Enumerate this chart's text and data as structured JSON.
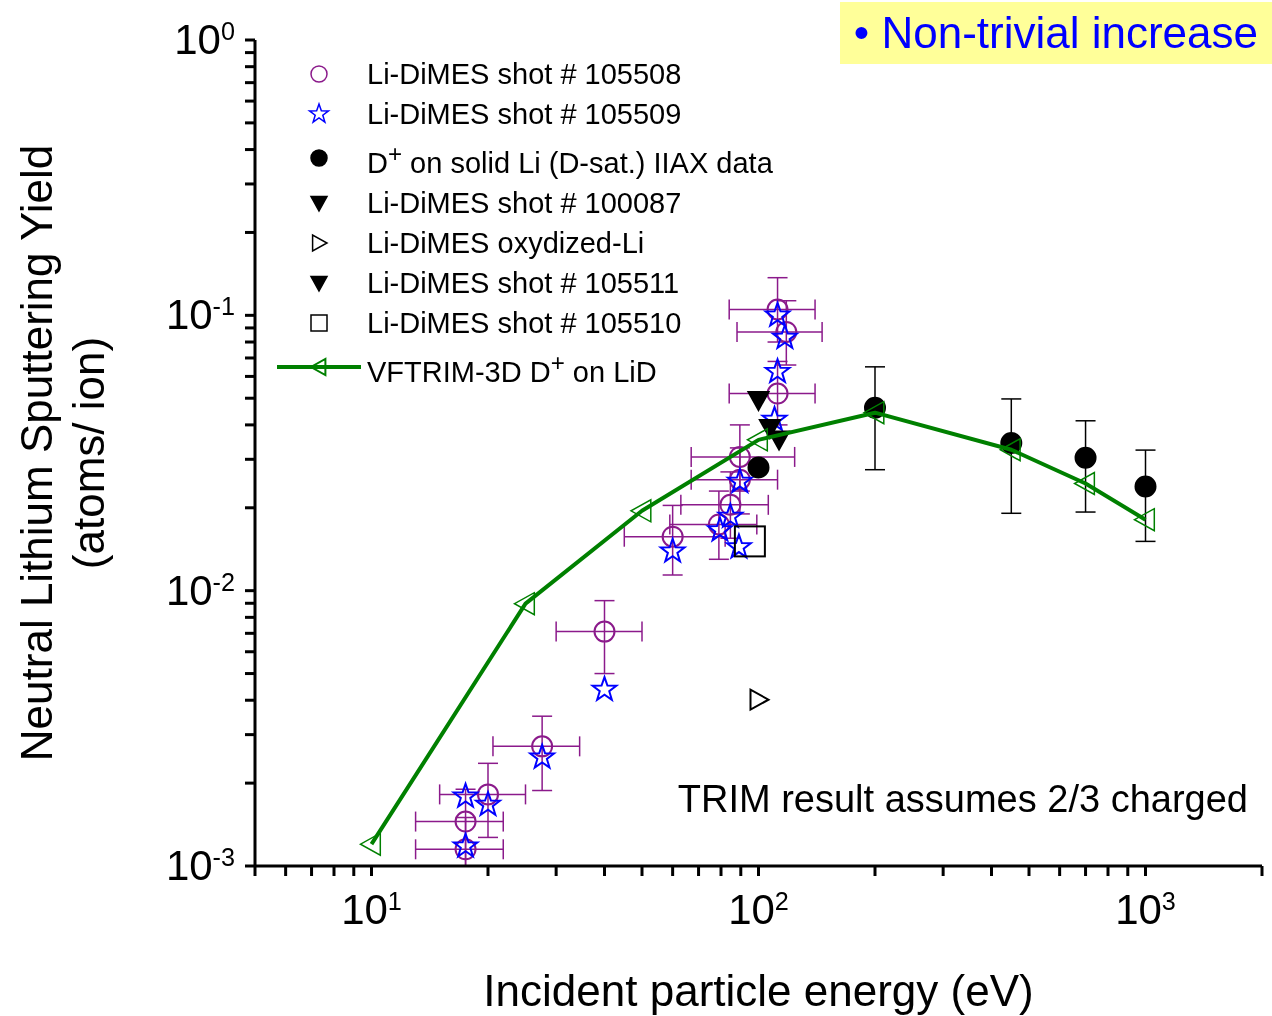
{
  "chart_data": {
    "type": "scatter",
    "xlabel": "Incident particle energy (eV)",
    "ylabel": "Neutral Lithium Sputtering Yield\n(atoms/ ion)",
    "log": "xy",
    "grid": false,
    "legend": "top left",
    "xlim": [
      5,
      2000
    ],
    "ylim": [
      0.001,
      1
    ],
    "xticks": [
      {
        "value": 5,
        "label": null
      },
      {
        "value": 6,
        "label": null
      },
      {
        "value": 7,
        "label": null
      },
      {
        "value": 8,
        "label": null
      },
      {
        "value": 9,
        "label": null
      },
      {
        "value": 10,
        "label": "10$^{1}$"
      },
      {
        "value": 20,
        "label": null
      },
      {
        "value": 30,
        "label": null
      },
      {
        "value": 40,
        "label": null
      },
      {
        "value": 50,
        "label": null
      },
      {
        "value": 60,
        "label": null
      },
      {
        "value": 70,
        "label": null
      },
      {
        "value": 80,
        "label": null
      },
      {
        "value": 90,
        "label": null
      },
      {
        "value": 100,
        "label": "10$^{2}$"
      },
      {
        "value": 200,
        "label": null
      },
      {
        "value": 300,
        "label": null
      },
      {
        "value": 400,
        "label": null
      },
      {
        "value": 500,
        "label": null
      },
      {
        "value": 600,
        "label": null
      },
      {
        "value": 700,
        "label": null
      },
      {
        "value": 800,
        "label": null
      },
      {
        "value": 900,
        "label": null
      },
      {
        "value": 1000,
        "label": "10$^{3}$"
      },
      {
        "value": 2000,
        "label": null
      }
    ],
    "yticks": [
      {
        "value": 0.001,
        "label": "10$^{-3}$"
      },
      {
        "value": 0.002,
        "label": null
      },
      {
        "value": 0.003,
        "label": null
      },
      {
        "value": 0.004,
        "label": null
      },
      {
        "value": 0.005,
        "label": null
      },
      {
        "value": 0.006,
        "label": null
      },
      {
        "value": 0.007,
        "label": null
      },
      {
        "value": 0.008,
        "label": null
      },
      {
        "value": 0.009,
        "label": null
      },
      {
        "value": 0.01,
        "label": "10$^{-2}$"
      },
      {
        "value": 0.02,
        "label": null
      },
      {
        "value": 0.03,
        "label": null
      },
      {
        "value": 0.04,
        "label": null
      },
      {
        "value": 0.05,
        "label": null
      },
      {
        "value": 0.06,
        "label": null
      },
      {
        "value": 0.07,
        "label": null
      },
      {
        "value": 0.08,
        "label": null
      },
      {
        "value": 0.09,
        "label": null
      },
      {
        "value": 0.1,
        "label": "10$^{-1}$"
      },
      {
        "value": 0.2,
        "label": null
      },
      {
        "value": 0.3,
        "label": null
      },
      {
        "value": 0.4,
        "label": null
      },
      {
        "value": 0.5,
        "label": null
      },
      {
        "value": 0.6,
        "label": null
      },
      {
        "value": 0.7,
        "label": null
      },
      {
        "value": 0.8,
        "label": null
      },
      {
        "value": 0.9,
        "label": null
      },
      {
        "value": 1,
        "label": "10$^{0}$"
      }
    ],
    "series": [
      {
        "name": "Li-DiMES shot # 105508",
        "color": "#8b1a8b",
        "marker": "circle",
        "x": [
          112,
          118,
          112,
          89.5,
          89.5,
          84.6,
          79,
          60,
          40,
          27.6,
          20,
          17.5,
          17.5
        ],
        "values": [
          0.105,
          0.087,
          0.052,
          0.0306,
          0.0253,
          0.0205,
          0.0174,
          0.0157,
          0.0071,
          0.00272,
          0.00182,
          0.00145,
          0.00115
        ],
        "errors": [
          [
            0.08,
            0.137
          ],
          [
            0.066,
            0.113
          ],
          [
            0.04,
            0.068
          ],
          [
            0.023,
            0.04
          ],
          [
            0.019,
            0.033
          ],
          [
            0.0155,
            0.027
          ],
          [
            0.013,
            0.023
          ],
          [
            0.0114,
            0.0204
          ],
          [
            0.005,
            0.0092
          ],
          [
            0.00188,
            0.0035
          ],
          [
            0.00127,
            0.00236
          ],
          [
            0.001,
            0.0019
          ],
          [
            0.001,
            0.0015
          ]
        ],
        "xerrors": [
          [
            84,
            140
          ],
          [
            88,
            146
          ],
          [
            84,
            140
          ],
          [
            67,
            124
          ],
          [
            67,
            112
          ],
          [
            63,
            106
          ],
          [
            59,
            99
          ],
          [
            45,
            82
          ],
          [
            30,
            50
          ],
          [
            20.6,
            34.5
          ],
          [
            15,
            25
          ],
          [
            13,
            21.9
          ],
          [
            13,
            21.9
          ]
        ]
      },
      {
        "name": "Li-DiMES shot # 105509",
        "color": "#0000ff",
        "marker": "star",
        "x": [
          112,
          117,
          112,
          110,
          89.5,
          84.6,
          79.5,
          89,
          60,
          40,
          27.6,
          20,
          17.5,
          17.5
        ],
        "values": [
          0.1,
          0.083,
          0.0624,
          0.0418,
          0.0249,
          0.0186,
          0.0166,
          0.0144,
          0.0139,
          0.00437,
          0.00248,
          0.00167,
          0.00179,
          0.00118
        ]
      },
      {
        "name": "D$^{+}$ on solid Li (D-sat.) IIAX data",
        "color": "#000000",
        "marker": "circle",
        "x": [
          100,
          200,
          450,
          700,
          1000
        ],
        "values": [
          0.028,
          0.0462,
          0.0344,
          0.0304,
          0.0239
        ],
        "errors": [
          null,
          [
            0.0275,
            0.065
          ],
          [
            0.0191,
            0.0497
          ],
          [
            0.0193,
            0.0414
          ],
          [
            0.0151,
            0.0324
          ]
        ]
      },
      {
        "name": "Li-DiMES shot # 100087",
        "color": "#000000",
        "marker": "triangle-down",
        "x": [
          100
        ],
        "values": [
          0.0493
        ]
      },
      {
        "name": "Li-DiMES oxydized-Li",
        "color": "#000000",
        "marker": "triangle-right",
        "x": [
          100
        ],
        "values": [
          0.00402
        ]
      },
      {
        "name": "Li-DiMES shot # 105511",
        "color": "#000000",
        "marker": "triangle-down",
        "x": [
          107,
          113
        ],
        "values": [
          0.039,
          0.0354
        ]
      },
      {
        "name": "Li-DiMES shot # 105510",
        "color": "#000000",
        "marker": "square",
        "x": [
          95
        ],
        "values": [
          0.0151
        ]
      },
      {
        "name": "VFTRIM-3D D$^{+}$ on LiD",
        "type": "line",
        "color": "#008000",
        "marker": "triangle-left",
        "line_style": "solid",
        "x": [
          10,
          25,
          50,
          100,
          200,
          450,
          700,
          1000
        ],
        "values": [
          0.0012,
          0.00897,
          0.0195,
          0.0353,
          0.0443,
          0.0325,
          0.0245,
          0.0181
        ]
      }
    ],
    "annotations": [
      "• Non-trivial increase",
      "TRIM result assumes 2/3 charged"
    ]
  }
}
